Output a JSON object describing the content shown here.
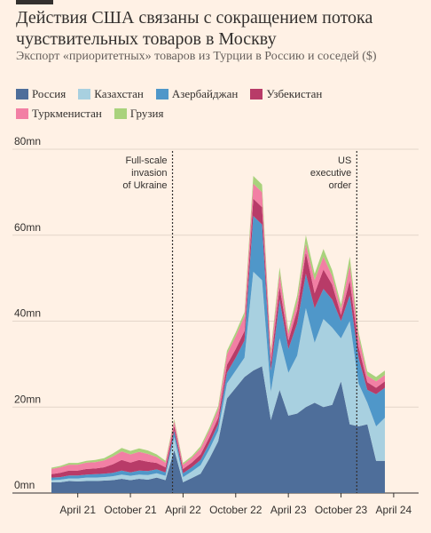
{
  "header": {
    "title": "Действия США связаны с сокращением потока чувствительных товаров в Москву",
    "subtitle": "Экспорт «приоритетных» товаров из Турции в Россию и соседей ($)"
  },
  "chart_data": {
    "type": "area",
    "stacked": true,
    "ylim": [
      0,
      80
    ],
    "yticks": [
      {
        "value": 0,
        "label": "0mn"
      },
      {
        "value": 20,
        "label": "20mn"
      },
      {
        "value": 40,
        "label": "40mn"
      },
      {
        "value": 60,
        "label": "60mn"
      },
      {
        "value": 80,
        "label": "80mn"
      }
    ],
    "xticks": [
      {
        "month": 3,
        "label": "April 21"
      },
      {
        "month": 9,
        "label": "October 21"
      },
      {
        "month": 15,
        "label": "April 22"
      },
      {
        "month": 21,
        "label": "October 22"
      },
      {
        "month": 27,
        "label": "April 23"
      },
      {
        "month": 33,
        "label": "October 23"
      },
      {
        "month": 39,
        "label": "April 24"
      }
    ],
    "x_months": [
      0,
      1,
      2,
      3,
      4,
      5,
      6,
      7,
      8,
      9,
      10,
      11,
      12,
      13,
      14,
      15,
      16,
      17,
      18,
      19,
      20,
      21,
      22,
      23,
      24,
      25,
      26,
      27,
      28,
      29,
      30,
      31,
      32,
      33,
      34,
      35,
      36,
      37,
      38
    ],
    "series": [
      {
        "name": "Россия",
        "color": "#4e6e9a",
        "values": [
          2.5,
          2.5,
          2.8,
          2.7,
          2.8,
          2.8,
          2.9,
          3.0,
          3.3,
          3.0,
          3.3,
          3.1,
          3.6,
          3.0,
          10.0,
          2.5,
          3.5,
          4.5,
          8.0,
          12.0,
          22.0,
          24.5,
          27.0,
          28.5,
          29.5,
          17.0,
          24.0,
          18.0,
          18.5,
          20.0,
          21.0,
          20.0,
          20.5,
          26.0,
          16.0,
          15.5,
          16.0,
          7.5,
          7.5
        ]
      },
      {
        "name": "Казахстан",
        "color": "#a8d0e0",
        "values": [
          0.5,
          0.6,
          0.6,
          0.7,
          0.8,
          0.8,
          0.8,
          0.9,
          1.0,
          1.0,
          1.0,
          1.1,
          1.0,
          1.0,
          3.0,
          1.2,
          1.5,
          2.0,
          2.2,
          2.5,
          3.5,
          4.0,
          4.5,
          23.0,
          20.0,
          6.5,
          12.0,
          10.0,
          13.5,
          23.0,
          14.0,
          20.5,
          18.0,
          10.0,
          24.0,
          10.0,
          5.0,
          8.0,
          10.0
        ]
      },
      {
        "name": "Азербайджан",
        "color": "#4f97c9",
        "values": [
          0.6,
          0.6,
          0.7,
          0.7,
          0.7,
          0.8,
          0.8,
          0.8,
          0.9,
          0.8,
          0.9,
          0.9,
          0.9,
          0.8,
          1.5,
          0.9,
          1.0,
          1.2,
          1.4,
          1.5,
          2.5,
          3.0,
          4.0,
          13.0,
          13.0,
          5.0,
          9.0,
          5.5,
          7.5,
          8.0,
          8.0,
          7.0,
          6.5,
          4.0,
          6.0,
          6.0,
          3.0,
          7.5,
          7.0
        ]
      },
      {
        "name": "Узбекистан",
        "color": "#b83b68",
        "values": [
          0.8,
          1.0,
          1.1,
          1.1,
          1.3,
          1.3,
          1.5,
          2.0,
          2.5,
          2.3,
          2.5,
          2.2,
          1.5,
          1.2,
          1.2,
          1.0,
          1.1,
          1.3,
          1.4,
          1.5,
          1.8,
          2.0,
          2.2,
          4.0,
          4.0,
          2.0,
          3.0,
          2.0,
          3.0,
          5.0,
          3.5,
          4.5,
          3.5,
          1.5,
          3.5,
          2.5,
          1.8,
          1.5,
          1.5
        ]
      },
      {
        "name": "Туркменистан",
        "color": "#f27fa4",
        "values": [
          1.2,
          1.3,
          1.4,
          1.4,
          1.5,
          1.5,
          1.6,
          1.8,
          2.0,
          1.9,
          1.9,
          1.8,
          1.4,
          1.1,
          1.1,
          1.0,
          1.1,
          1.4,
          1.6,
          2.0,
          2.5,
          3.0,
          3.5,
          3.5,
          3.5,
          2.0,
          3.0,
          1.5,
          2.0,
          2.0,
          3.0,
          3.0,
          2.0,
          1.5,
          3.5,
          2.5,
          1.5,
          1.5,
          1.5
        ]
      },
      {
        "name": "Грузия",
        "color": "#a9d27c",
        "values": [
          0.3,
          0.3,
          0.4,
          0.4,
          0.4,
          0.5,
          0.5,
          0.7,
          0.8,
          0.8,
          0.8,
          0.8,
          0.6,
          0.4,
          0.4,
          0.4,
          0.4,
          0.5,
          0.6,
          0.7,
          0.8,
          0.9,
          0.9,
          1.8,
          1.8,
          0.8,
          1.5,
          0.8,
          1.5,
          2.0,
          1.5,
          1.8,
          1.3,
          0.9,
          2.0,
          1.0,
          1.0,
          1.0,
          1.0
        ]
      }
    ],
    "annotations": [
      {
        "month": 14,
        "lines": [
          "Full-scale",
          "invasion",
          "of Ukraine"
        ]
      },
      {
        "month": 35,
        "lines": [
          "US",
          "executive",
          "order"
        ]
      }
    ],
    "grid": true
  }
}
